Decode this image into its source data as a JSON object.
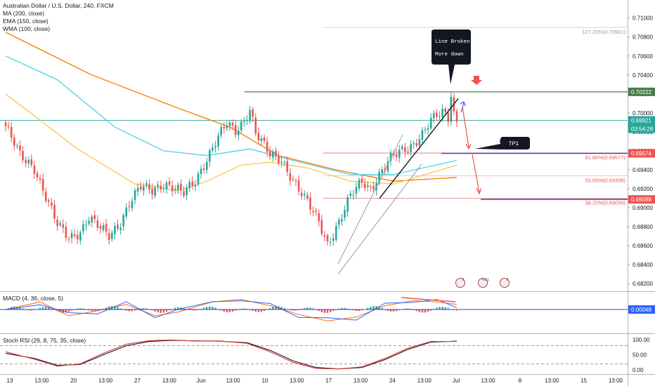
{
  "header": {
    "symbol_title": "Australian Dollar / U.S. Dollar, 240, FXCM",
    "indicators": [
      "MA (200, close)",
      "EMA (150, close)",
      "WMA (100, close)"
    ]
  },
  "macd_label": "MACD (4, 36, close, 5)",
  "stoch_label": "Stoch RSI (29, 8, 75, 35, close)",
  "colors": {
    "up": "#26a69a",
    "down": "#ef5350",
    "ma200": "#f57c00",
    "ema150": "#4dd0e1",
    "wma100": "#f9c74f",
    "level_green": "#4a7c4a",
    "level_current": "#26a69a",
    "fib_line": "#e57373",
    "target_line": "#3f3fd1",
    "macd_line": "#2962ff",
    "signal_line": "#ff6d00",
    "stoch_k": "#e53935",
    "stoch_d": "#131722"
  },
  "annotations": {
    "callout_line1": "Line Broken",
    "callout_line2": "More down",
    "tp_label": "TP1"
  },
  "fib_labels": {
    "fib_127": "127.20%(0.70901)",
    "fib_618": "61.80%(0.69577)",
    "fib_50": "50.00%(0.69338)",
    "fib_382": "38.20%(0.69099)"
  },
  "price_badges": {
    "resistance": "0.70222",
    "current": "0.69921",
    "countdown": "03:54:28",
    "target1": "0.69574",
    "target2": "0.69088",
    "macd": "0.00048"
  },
  "chart_data": {
    "type": "candlestick",
    "price_axis": {
      "ticks": [
        "0.71000",
        "0.70800",
        "0.70600",
        "0.70400",
        "0.70200",
        "0.70000",
        "0.69800",
        "0.69600",
        "0.69400",
        "0.69200",
        "0.69000",
        "0.68800",
        "0.68600",
        "0.68400",
        "0.68200"
      ],
      "range": [
        0.6812,
        0.7119
      ]
    },
    "time_axis": {
      "ticks": [
        "13",
        "13:00",
        "20",
        "13:00",
        "27",
        "13:00",
        "Jun",
        "13:00",
        "10",
        "13:00",
        "17",
        "13:00",
        "24",
        "13:00",
        "Jul",
        "13:00",
        "8",
        "13:00",
        "15",
        "13:00"
      ]
    },
    "stoch_axis": {
      "ticks": [
        "100.00",
        "50.00",
        "0.00"
      ],
      "bands": [
        80,
        20
      ],
      "range": [
        0,
        100
      ]
    },
    "candle_path": [
      [
        0,
        0.6986
      ],
      [
        5,
        0.6955
      ],
      [
        10,
        0.6942
      ],
      [
        14,
        0.6912
      ],
      [
        18,
        0.6882
      ],
      [
        22,
        0.6868
      ],
      [
        26,
        0.6875
      ],
      [
        29,
        0.689
      ],
      [
        33,
        0.6878
      ],
      [
        36,
        0.687
      ],
      [
        40,
        0.6885
      ],
      [
        43,
        0.6905
      ],
      [
        47,
        0.6922
      ],
      [
        51,
        0.6918
      ],
      [
        55,
        0.6926
      ],
      [
        58,
        0.6922
      ],
      [
        62,
        0.6915
      ],
      [
        66,
        0.6928
      ],
      [
        70,
        0.6952
      ],
      [
        74,
        0.6975
      ],
      [
        77,
        0.6988
      ],
      [
        80,
        0.698
      ],
      [
        83,
        0.6992
      ],
      [
        85,
        0.7005
      ],
      [
        87,
        0.698
      ],
      [
        89,
        0.697
      ],
      [
        92,
        0.6955
      ],
      [
        96,
        0.695
      ],
      [
        99,
        0.6935
      ],
      [
        103,
        0.6915
      ],
      [
        106,
        0.69
      ],
      [
        109,
        0.6885
      ],
      [
        112,
        0.6862
      ],
      [
        116,
        0.6885
      ],
      [
        120,
        0.6912
      ],
      [
        124,
        0.6928
      ],
      [
        127,
        0.692
      ],
      [
        130,
        0.6935
      ],
      [
        134,
        0.6952
      ],
      [
        138,
        0.696
      ],
      [
        141,
        0.6965
      ],
      [
        145,
        0.6978
      ],
      [
        148,
        0.6992
      ],
      [
        152,
        0.7
      ],
      [
        154,
        0.6995
      ],
      [
        155,
        0.702
      ],
      [
        156,
        0.6999
      ],
      [
        157,
        0.6992
      ]
    ],
    "moving_averages": [
      {
        "name": "MA (200, close)",
        "color": "#f57c00",
        "points": [
          [
            0,
            0.7085
          ],
          [
            30,
            0.704
          ],
          [
            60,
            0.7005
          ],
          [
            78,
            0.6985
          ],
          [
            95,
            0.6955
          ],
          [
            115,
            0.694
          ],
          [
            135,
            0.6928
          ],
          [
            157,
            0.6932
          ]
        ]
      },
      {
        "name": "EMA (150, close)",
        "color": "#4dd0e1",
        "points": [
          [
            0,
            0.706
          ],
          [
            18,
            0.7035
          ],
          [
            38,
            0.6985
          ],
          [
            55,
            0.696
          ],
          [
            70,
            0.6955
          ],
          [
            85,
            0.6962
          ],
          [
            100,
            0.695
          ],
          [
            120,
            0.6935
          ],
          [
            135,
            0.6935
          ],
          [
            157,
            0.695
          ]
        ]
      },
      {
        "name": "WMA (100, close)",
        "color": "#f9c74f",
        "points": [
          [
            0,
            0.702
          ],
          [
            25,
            0.6962
          ],
          [
            45,
            0.6925
          ],
          [
            60,
            0.6918
          ],
          [
            70,
            0.6928
          ],
          [
            82,
            0.6945
          ],
          [
            92,
            0.6948
          ],
          [
            105,
            0.6942
          ],
          [
            120,
            0.6928
          ],
          [
            135,
            0.6925
          ],
          [
            157,
            0.6945
          ]
        ]
      }
    ],
    "levels": [
      {
        "name": "resistance",
        "price": 0.70222
      },
      {
        "name": "current",
        "price": 0.69921
      },
      {
        "name": "fib_127",
        "price": 0.70901
      },
      {
        "name": "fib_618",
        "price": 0.69577
      },
      {
        "name": "fib_50",
        "price": 0.69338
      },
      {
        "name": "fib_382",
        "price": 0.69099
      },
      {
        "name": "target1",
        "price": 0.69574
      },
      {
        "name": "target2",
        "price": 0.69088
      }
    ],
    "macd_signal_path": [
      [
        0,
        0
      ],
      [
        12,
        0.6
      ],
      [
        22,
        -0.5
      ],
      [
        32,
        -0.1
      ],
      [
        42,
        0.4
      ],
      [
        52,
        -0.5
      ],
      [
        60,
        -0.2
      ],
      [
        72,
        0.6
      ],
      [
        82,
        0.8
      ],
      [
        92,
        0.3
      ],
      [
        102,
        -0.4
      ],
      [
        112,
        -0.9
      ],
      [
        122,
        -0.6
      ],
      [
        132,
        0.3
      ],
      [
        142,
        0.7
      ],
      [
        150,
        0.6
      ],
      [
        157,
        0.4
      ]
    ],
    "stoch_k_path": [
      [
        0,
        60
      ],
      [
        10,
        35
      ],
      [
        18,
        12
      ],
      [
        26,
        20
      ],
      [
        34,
        55
      ],
      [
        42,
        85
      ],
      [
        50,
        97
      ],
      [
        58,
        99
      ],
      [
        66,
        95
      ],
      [
        74,
        96
      ],
      [
        84,
        88
      ],
      [
        92,
        60
      ],
      [
        100,
        25
      ],
      [
        108,
        5
      ],
      [
        116,
        3
      ],
      [
        124,
        10
      ],
      [
        132,
        38
      ],
      [
        140,
        72
      ],
      [
        148,
        94
      ],
      [
        157,
        94
      ]
    ],
    "stoch_d_path": [
      [
        0,
        55
      ],
      [
        10,
        38
      ],
      [
        18,
        15
      ],
      [
        26,
        18
      ],
      [
        34,
        50
      ],
      [
        42,
        80
      ],
      [
        50,
        94
      ],
      [
        58,
        98
      ],
      [
        66,
        96
      ],
      [
        74,
        95
      ],
      [
        84,
        90
      ],
      [
        92,
        65
      ],
      [
        100,
        30
      ],
      [
        108,
        8
      ],
      [
        116,
        3
      ],
      [
        124,
        8
      ],
      [
        132,
        34
      ],
      [
        140,
        68
      ],
      [
        148,
        92
      ],
      [
        157,
        95
      ]
    ]
  }
}
